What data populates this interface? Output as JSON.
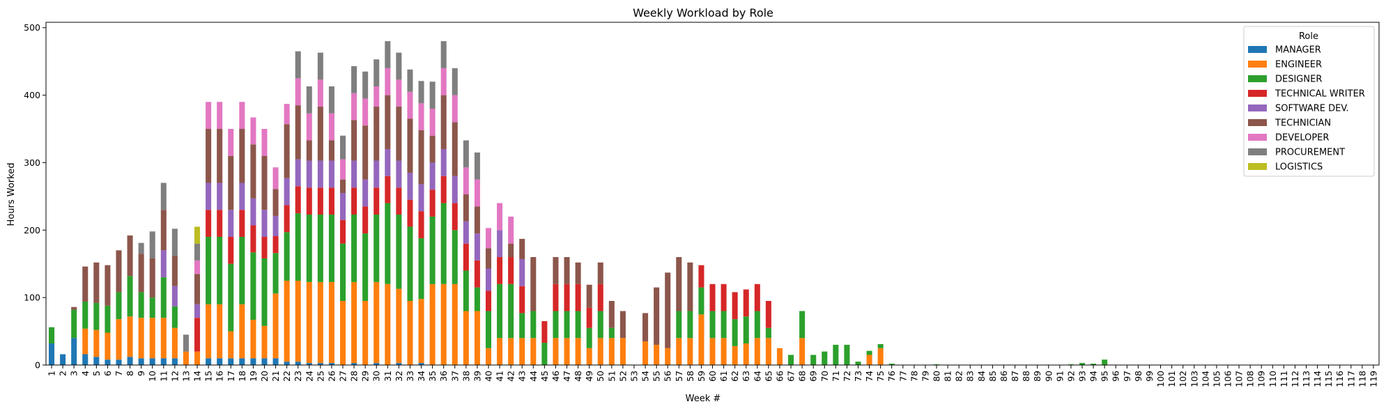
{
  "chart_data": {
    "type": "bar",
    "stacked": true,
    "title": "Weekly Workload by Role",
    "xlabel": "Week #",
    "ylabel": "Hours Worked",
    "ylim": [
      0,
      508
    ],
    "yticks": [
      0,
      100,
      200,
      300,
      400,
      500
    ],
    "grid": false,
    "legend": {
      "title": "Role",
      "placement": "top-right"
    },
    "categories": [
      "1",
      "2",
      "3",
      "4",
      "5",
      "6",
      "7",
      "8",
      "9",
      "10",
      "11",
      "12",
      "13",
      "14",
      "15",
      "16",
      "17",
      "18",
      "19",
      "20",
      "21",
      "22",
      "23",
      "24",
      "25",
      "26",
      "27",
      "28",
      "29",
      "30",
      "31",
      "32",
      "33",
      "34",
      "35",
      "36",
      "37",
      "38",
      "39",
      "40",
      "41",
      "42",
      "43",
      "44",
      "45",
      "46",
      "47",
      "48",
      "49",
      "50",
      "51",
      "52",
      "53",
      "54",
      "55",
      "56",
      "57",
      "58",
      "59",
      "60",
      "61",
      "62",
      "63",
      "64",
      "65",
      "66",
      "67",
      "68",
      "69",
      "70",
      "71",
      "72",
      "73",
      "74",
      "75",
      "76",
      "77",
      "78",
      "79",
      "80",
      "81",
      "82",
      "83",
      "84",
      "85",
      "86",
      "87",
      "88",
      "89",
      "90",
      "91",
      "92",
      "93",
      "94",
      "95",
      "96",
      "97",
      "98",
      "99",
      "100",
      "101",
      "102",
      "103",
      "104",
      "105",
      "106",
      "107",
      "108",
      "109",
      "110",
      "111",
      "112",
      "113",
      "114",
      "115",
      "116",
      "117",
      "118",
      "119"
    ],
    "series": [
      {
        "name": "MANAGER",
        "color": "#1f77b4",
        "values": [
          32,
          16,
          40,
          16,
          12,
          8,
          8,
          12,
          10,
          10,
          10,
          10,
          0,
          0,
          10,
          10,
          10,
          10,
          10,
          10,
          10,
          5,
          5,
          3,
          3,
          3,
          0,
          3,
          0,
          3,
          0,
          3,
          0,
          3,
          0,
          0,
          0,
          0,
          0,
          0,
          0,
          0,
          0,
          0,
          0,
          0,
          0,
          0,
          0,
          0,
          0,
          0,
          0,
          0,
          0,
          0,
          0,
          0,
          0,
          0,
          0,
          0,
          0,
          0,
          0,
          0,
          0,
          0,
          0,
          0,
          0,
          0,
          0,
          0,
          0,
          0,
          0,
          0,
          0,
          0,
          0,
          0,
          0,
          0,
          0,
          0,
          0,
          0,
          0,
          0,
          0,
          0,
          0,
          0,
          0,
          0,
          0,
          0,
          0,
          0,
          0,
          0,
          0,
          0,
          0,
          0,
          0,
          0,
          0,
          0,
          0,
          0,
          0,
          0,
          0,
          0,
          0,
          0,
          0
        ]
      },
      {
        "name": "ENGINEER",
        "color": "#ff7f0e",
        "values": [
          0,
          0,
          0,
          38,
          40,
          40,
          60,
          60,
          60,
          60,
          60,
          45,
          20,
          20,
          80,
          80,
          40,
          80,
          57,
          48,
          96,
          120,
          120,
          120,
          120,
          120,
          95,
          120,
          95,
          120,
          120,
          110,
          95,
          95,
          120,
          120,
          120,
          80,
          80,
          25,
          40,
          40,
          40,
          40,
          0,
          40,
          40,
          40,
          25,
          40,
          40,
          40,
          0,
          35,
          30,
          25,
          40,
          40,
          75,
          40,
          40,
          28,
          32,
          40,
          40,
          25,
          0,
          40,
          0,
          0,
          0,
          0,
          0,
          15,
          25,
          0,
          0,
          0,
          0,
          0,
          0,
          0,
          0,
          0,
          0,
          0,
          0,
          0,
          0,
          0,
          0,
          0,
          0,
          0,
          0,
          0,
          0,
          0,
          0,
          0,
          0,
          0,
          0,
          0,
          0,
          0,
          0,
          0,
          0,
          0,
          0,
          0,
          0,
          0,
          0,
          0,
          0,
          0,
          0
        ]
      },
      {
        "name": "DESIGNER",
        "color": "#2ca02c",
        "values": [
          24,
          0,
          42,
          40,
          40,
          40,
          40,
          60,
          38,
          30,
          60,
          32,
          0,
          0,
          100,
          100,
          100,
          100,
          100,
          100,
          60,
          72,
          100,
          100,
          100,
          100,
          85,
          100,
          100,
          100,
          120,
          110,
          110,
          90,
          100,
          120,
          80,
          60,
          35,
          55,
          80,
          80,
          37,
          40,
          33,
          40,
          40,
          40,
          30,
          40,
          15,
          0,
          0,
          0,
          0,
          0,
          40,
          40,
          40,
          40,
          40,
          40,
          40,
          40,
          15,
          0,
          15,
          40,
          15,
          20,
          30,
          30,
          5,
          6,
          6,
          2,
          0,
          0,
          0,
          1,
          0,
          0,
          0,
          0,
          0,
          0,
          0,
          0,
          0,
          0,
          0,
          1,
          3,
          2,
          8,
          0,
          0,
          0,
          0,
          0,
          0,
          0,
          0,
          0,
          0,
          0,
          0,
          0,
          0,
          0,
          0,
          0,
          0,
          0,
          0,
          0,
          0,
          0,
          0
        ]
      },
      {
        "name": "TECHNICAL WRITER",
        "color": "#d62728",
        "values": [
          0,
          0,
          0,
          0,
          0,
          0,
          0,
          0,
          0,
          0,
          0,
          0,
          0,
          50,
          40,
          40,
          40,
          40,
          40,
          32,
          25,
          40,
          40,
          40,
          40,
          40,
          35,
          40,
          40,
          40,
          40,
          40,
          40,
          40,
          40,
          40,
          40,
          40,
          40,
          30,
          40,
          40,
          40,
          0,
          32,
          40,
          40,
          40,
          30,
          40,
          0,
          0,
          0,
          0,
          0,
          0,
          0,
          0,
          33,
          40,
          40,
          40,
          40,
          40,
          40,
          0,
          0,
          0,
          0,
          0,
          0,
          0,
          0,
          0,
          0,
          0,
          0,
          0,
          0,
          0,
          0,
          0,
          0,
          0,
          0,
          0,
          0,
          0,
          0,
          0,
          0,
          0,
          0,
          0,
          0,
          0,
          0,
          0,
          0,
          0,
          0,
          0,
          0,
          0,
          0,
          0,
          0,
          0,
          0,
          0,
          0,
          0,
          0,
          0,
          0,
          0,
          0,
          0,
          0
        ]
      },
      {
        "name": "SOFTWARE DEV.",
        "color": "#9467bd",
        "values": [
          0,
          0,
          0,
          0,
          0,
          0,
          0,
          0,
          0,
          0,
          40,
          30,
          0,
          20,
          40,
          40,
          40,
          40,
          40,
          40,
          30,
          40,
          40,
          40,
          40,
          40,
          40,
          40,
          40,
          40,
          40,
          40,
          40,
          40,
          40,
          40,
          40,
          33,
          40,
          33,
          40,
          0,
          40,
          0,
          0,
          0,
          0,
          0,
          0,
          0,
          0,
          0,
          0,
          0,
          0,
          0,
          0,
          0,
          0,
          0,
          0,
          0,
          0,
          0,
          0,
          0,
          0,
          0,
          0,
          0,
          0,
          0,
          0,
          0,
          0,
          0,
          0,
          0,
          0,
          0,
          0,
          0,
          0,
          0,
          0,
          0,
          0,
          0,
          0,
          0,
          0,
          0,
          0,
          0,
          0,
          0,
          0,
          0,
          0,
          0,
          0,
          0,
          0,
          0,
          0,
          0,
          0,
          0,
          0,
          0,
          0,
          0,
          0,
          0,
          0,
          0,
          0,
          0,
          0
        ]
      },
      {
        "name": "TECHNICIAN",
        "color": "#8c564b",
        "values": [
          0,
          0,
          4,
          52,
          60,
          60,
          62,
          60,
          57,
          58,
          60,
          45,
          0,
          45,
          80,
          80,
          80,
          80,
          80,
          80,
          40,
          80,
          80,
          30,
          80,
          30,
          20,
          60,
          80,
          80,
          80,
          80,
          80,
          80,
          40,
          80,
          80,
          40,
          40,
          30,
          0,
          20,
          30,
          80,
          0,
          40,
          40,
          32,
          34,
          32,
          40,
          40,
          0,
          42,
          85,
          112,
          80,
          72,
          0,
          0,
          0,
          0,
          0,
          0,
          0,
          0,
          0,
          0,
          0,
          0,
          0,
          0,
          0,
          0,
          0,
          0,
          0,
          0,
          0,
          0,
          0,
          0,
          0,
          0,
          0,
          0,
          0,
          0,
          0,
          0,
          0,
          0,
          0,
          0,
          0,
          0,
          0,
          0,
          0,
          0,
          0,
          0,
          0,
          0,
          0,
          0,
          0,
          0,
          0,
          0,
          0,
          0,
          0,
          0,
          0,
          0,
          0,
          0,
          0
        ]
      },
      {
        "name": "DEVELOPER",
        "color": "#e377c2",
        "values": [
          0,
          0,
          0,
          0,
          0,
          0,
          0,
          0,
          0,
          0,
          0,
          0,
          0,
          20,
          40,
          40,
          40,
          40,
          40,
          40,
          32,
          30,
          40,
          40,
          40,
          40,
          30,
          40,
          40,
          30,
          40,
          40,
          40,
          40,
          40,
          40,
          40,
          40,
          40,
          30,
          40,
          40,
          0,
          0,
          0,
          0,
          0,
          0,
          0,
          0,
          0,
          0,
          0,
          0,
          0,
          0,
          0,
          0,
          0,
          0,
          0,
          0,
          0,
          0,
          0,
          0,
          0,
          0,
          0,
          0,
          0,
          0,
          0,
          0,
          0,
          0,
          0,
          0,
          0,
          0,
          0,
          0,
          0,
          0,
          0,
          0,
          0,
          0,
          0,
          0,
          0,
          0,
          0,
          0,
          0,
          0,
          0,
          0,
          0,
          0,
          0,
          0,
          0,
          0,
          0,
          0,
          0,
          0,
          0,
          0,
          0,
          0,
          0,
          0,
          0,
          0,
          0,
          0,
          0
        ]
      },
      {
        "name": "PROCUREMENT",
        "color": "#7f7f7f",
        "values": [
          0,
          0,
          0,
          0,
          0,
          0,
          0,
          0,
          16,
          40,
          40,
          40,
          25,
          25,
          0,
          0,
          0,
          0,
          0,
          0,
          0,
          0,
          40,
          40,
          40,
          40,
          35,
          40,
          40,
          40,
          40,
          40,
          33,
          33,
          40,
          40,
          40,
          40,
          40,
          0,
          0,
          0,
          0,
          0,
          0,
          0,
          0,
          0,
          0,
          0,
          0,
          0,
          0,
          0,
          0,
          0,
          0,
          0,
          0,
          0,
          0,
          0,
          0,
          0,
          0,
          0,
          0,
          0,
          0,
          0,
          0,
          0,
          0,
          0,
          0,
          0,
          0,
          0,
          0,
          0,
          0,
          0,
          0,
          0,
          0,
          0,
          0,
          0,
          0,
          0,
          0,
          0,
          0,
          0,
          0,
          0,
          0,
          0,
          0,
          0,
          0,
          0,
          0,
          0,
          0,
          0,
          0,
          0,
          0,
          0,
          0,
          0,
          0,
          0,
          0,
          0,
          0,
          0,
          0
        ]
      },
      {
        "name": "LOGISTICS",
        "color": "#bcbd22",
        "values": [
          0,
          0,
          0,
          0,
          0,
          0,
          0,
          0,
          0,
          0,
          0,
          0,
          0,
          25,
          0,
          0,
          0,
          0,
          0,
          0,
          0,
          0,
          0,
          0,
          0,
          0,
          0,
          0,
          0,
          0,
          0,
          0,
          0,
          0,
          0,
          0,
          0,
          0,
          0,
          0,
          0,
          0,
          0,
          0,
          0,
          0,
          0,
          0,
          0,
          0,
          0,
          0,
          0,
          0,
          0,
          0,
          0,
          0,
          0,
          0,
          0,
          0,
          0,
          0,
          0,
          0,
          0,
          0,
          0,
          0,
          0,
          0,
          0,
          0,
          0,
          0,
          0,
          0,
          0,
          0,
          0,
          0,
          0,
          0,
          0,
          0,
          0,
          0,
          0,
          0,
          0,
          0,
          0,
          0,
          0,
          0,
          0,
          0,
          0,
          0,
          0,
          0,
          0,
          0,
          0,
          0,
          0,
          0,
          0,
          0,
          0,
          0,
          0,
          0,
          0,
          0,
          0,
          0,
          0
        ]
      }
    ]
  }
}
